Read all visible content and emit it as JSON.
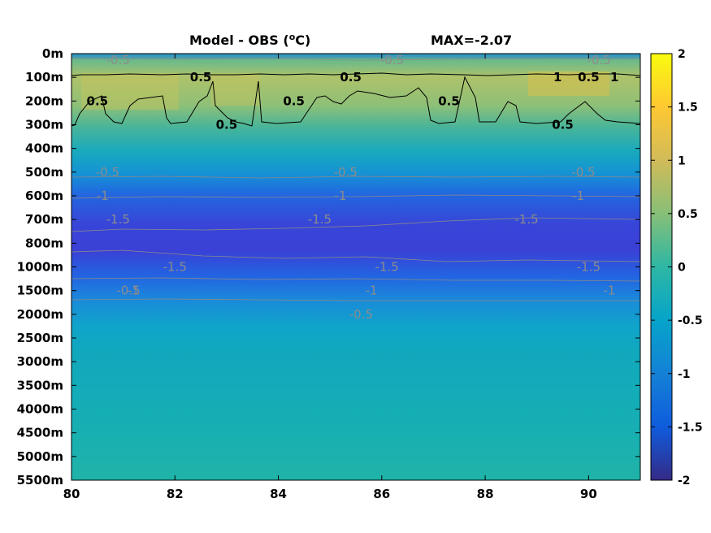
{
  "title": {
    "left_prefix": "Model - OBS (",
    "left_sup": "o",
    "left_suffix": "C)",
    "right": "MAX=-2.07"
  },
  "chart_data": {
    "type": "heatmap",
    "title": "Model - OBS (oC)",
    "annotation": "MAX=-2.07",
    "x": {
      "ticks": [
        80,
        82,
        84,
        86,
        88,
        90
      ],
      "range": [
        80,
        91
      ]
    },
    "y": {
      "ticks": [
        "0m",
        "100m",
        "200m",
        "300m",
        "400m",
        "500m",
        "600m",
        "700m",
        "800m",
        "1000m",
        "1500m",
        "2000m",
        "2500m",
        "3000m",
        "3500m",
        "4000m",
        "4500m",
        "5000m",
        "5500m"
      ],
      "inverted": true
    },
    "colorbar": {
      "ticks": [
        "2",
        "1.5",
        "1",
        "0.5",
        "0",
        "-0.5",
        "-1",
        "-1.5",
        "-2"
      ],
      "range": [
        -2,
        2
      ],
      "colormap": "parula",
      "colors": [
        "#352a87",
        "#0f5cdd",
        "#1481d6",
        "#06a4ca",
        "#2eb7a4",
        "#87bf77",
        "#d1bb59",
        "#fec832",
        "#f9fb0e"
      ]
    },
    "contour_labels": [
      {
        "text": "-0.5",
        "x": 80.9,
        "level": "0m"
      },
      {
        "text": "-0.5",
        "x": 86.2,
        "level": "0m"
      },
      {
        "text": "-0.5",
        "x": 90.2,
        "level": "0m"
      },
      {
        "text": "0.5",
        "x": 85.4,
        "level": "100m"
      },
      {
        "text": "0.5",
        "x": 90.0,
        "level": "100m"
      },
      {
        "text": "1",
        "x": 89.4,
        "level": "100m"
      },
      {
        "text": "1",
        "x": 90.5,
        "level": "100m"
      },
      {
        "text": "0.5",
        "x": 80.5,
        "level": "200m"
      },
      {
        "text": "0.5",
        "x": 82.5,
        "level": "100m"
      },
      {
        "text": "0.5",
        "x": 83.0,
        "level": "300m"
      },
      {
        "text": "0.5",
        "x": 84.3,
        "level": "200m"
      },
      {
        "text": "0.5",
        "x": 87.3,
        "level": "200m"
      },
      {
        "text": "0.5",
        "x": 89.5,
        "level": "300m"
      },
      {
        "text": "-0.5",
        "x": 80.7,
        "level": "500m"
      },
      {
        "text": "-0.5",
        "x": 85.3,
        "level": "500m"
      },
      {
        "text": "-0.5",
        "x": 89.9,
        "level": "500m"
      },
      {
        "text": "-1",
        "x": 80.6,
        "level": "600m"
      },
      {
        "text": "-1",
        "x": 85.2,
        "level": "600m"
      },
      {
        "text": "-1",
        "x": 89.8,
        "level": "600m"
      },
      {
        "text": "-1.5",
        "x": 80.9,
        "level": "700m"
      },
      {
        "text": "-1.5",
        "x": 84.8,
        "level": "700m"
      },
      {
        "text": "-1.5",
        "x": 88.8,
        "level": "700m"
      },
      {
        "text": "-1.5",
        "x": 82.0,
        "level": "1000m"
      },
      {
        "text": "-1.5",
        "x": 86.1,
        "level": "1000m"
      },
      {
        "text": "-1.5",
        "x": 90.0,
        "level": "1000m"
      },
      {
        "text": "-1",
        "x": 81.2,
        "level": "1500m"
      },
      {
        "text": "-1",
        "x": 85.8,
        "level": "1500m"
      },
      {
        "text": "-1",
        "x": 90.4,
        "level": "1500m"
      },
      {
        "text": "-0.5",
        "x": 81.1,
        "level": "1500m"
      },
      {
        "text": "-0.5",
        "x": 85.6,
        "level": "2000m"
      }
    ]
  }
}
